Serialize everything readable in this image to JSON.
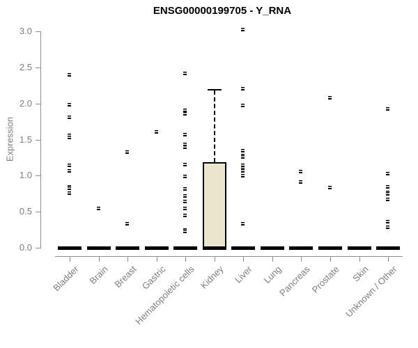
{
  "title": "ENSG00000199705 - Y_RNA",
  "colors": {
    "background": "#ffffff",
    "title_text": "#000000",
    "axis_line": "#8c8c8c",
    "axis_text": "#7e7e7e",
    "marker": "#000000",
    "box_fill": "#ece7cc",
    "box_border": "#000000"
  },
  "chart_data": {
    "type": "box",
    "title": "ENSG00000199705 - Y_RNA",
    "xlabel": "",
    "ylabel": "Expression",
    "ylim": [
      0.0,
      3.0
    ],
    "yticks": [
      "0.0",
      "0.5",
      "1.0",
      "1.5",
      "2.0",
      "2.5",
      "3.0"
    ],
    "grid": false,
    "legend": "none",
    "marker_style": "small-black-square",
    "categories": [
      "Bladder",
      "Brain",
      "Breast",
      "Gastric",
      "Hematopoietic cells",
      "Kidney",
      "Liver",
      "Lung",
      "Pancreas",
      "Prostate",
      "Skin",
      "Unknown / Other"
    ],
    "series": [
      {
        "category": "Bladder",
        "q1": 0.0,
        "median": 0.0,
        "q3": 0.0,
        "whisker_low": 0.0,
        "whisker_high": 0.0,
        "outliers": [
          2.4,
          1.99,
          1.81,
          1.56,
          1.53,
          1.15,
          1.07,
          0.85,
          0.83,
          0.76
        ]
      },
      {
        "category": "Brain",
        "q1": 0.0,
        "median": 0.0,
        "q3": 0.0,
        "whisker_low": 0.0,
        "whisker_high": 0.0,
        "outliers": [
          0.55
        ]
      },
      {
        "category": "Breast",
        "q1": 0.0,
        "median": 0.0,
        "q3": 0.0,
        "whisker_low": 0.0,
        "whisker_high": 0.0,
        "outliers": [
          1.33,
          0.34
        ]
      },
      {
        "category": "Gastric",
        "q1": 0.0,
        "median": 0.0,
        "q3": 0.0,
        "whisker_low": 0.0,
        "whisker_high": 0.0,
        "outliers": [
          1.61
        ]
      },
      {
        "category": "Hematopoietic cells",
        "q1": 0.0,
        "median": 0.0,
        "q3": 0.0,
        "whisker_low": 0.0,
        "whisker_high": 0.0,
        "outliers": [
          2.42,
          1.91,
          1.86,
          1.57,
          1.44,
          1.4,
          1.16,
          0.99,
          0.82,
          0.72,
          0.65,
          0.55,
          0.45,
          0.25,
          0.23
        ]
      },
      {
        "category": "Kidney",
        "q1": 0.0,
        "median": 0.0,
        "q3": 1.19,
        "whisker_low": 0.0,
        "whisker_high": 2.18,
        "outliers": []
      },
      {
        "category": "Liver",
        "q1": 0.0,
        "median": 0.0,
        "q3": 0.0,
        "whisker_low": 0.0,
        "whisker_high": 0.0,
        "outliers": [
          3.03,
          2.21,
          1.98,
          1.35,
          1.28,
          1.26,
          1.15,
          1.09,
          1.07,
          1.0,
          0.34
        ]
      },
      {
        "category": "Lung",
        "q1": 0.0,
        "median": 0.0,
        "q3": 0.0,
        "whisker_low": 0.0,
        "whisker_high": 0.0,
        "outliers": []
      },
      {
        "category": "Pancreas",
        "q1": 0.0,
        "median": 0.0,
        "q3": 0.0,
        "whisker_low": 0.0,
        "whisker_high": 0.0,
        "outliers": [
          1.06,
          0.92
        ]
      },
      {
        "category": "Prostate",
        "q1": 0.0,
        "median": 0.0,
        "q3": 0.0,
        "whisker_low": 0.0,
        "whisker_high": 0.0,
        "outliers": [
          2.08,
          0.84
        ]
      },
      {
        "category": "Skin",
        "q1": 0.0,
        "median": 0.0,
        "q3": 0.0,
        "whisker_low": 0.0,
        "whisker_high": 0.0,
        "outliers": []
      },
      {
        "category": "Unknown / Other",
        "q1": 0.0,
        "median": 0.0,
        "q3": 0.0,
        "whisker_low": 0.0,
        "whisker_high": 0.0,
        "outliers": [
          1.93,
          1.03,
          0.85,
          0.77,
          0.75,
          0.68,
          0.37,
          0.29
        ]
      }
    ]
  }
}
